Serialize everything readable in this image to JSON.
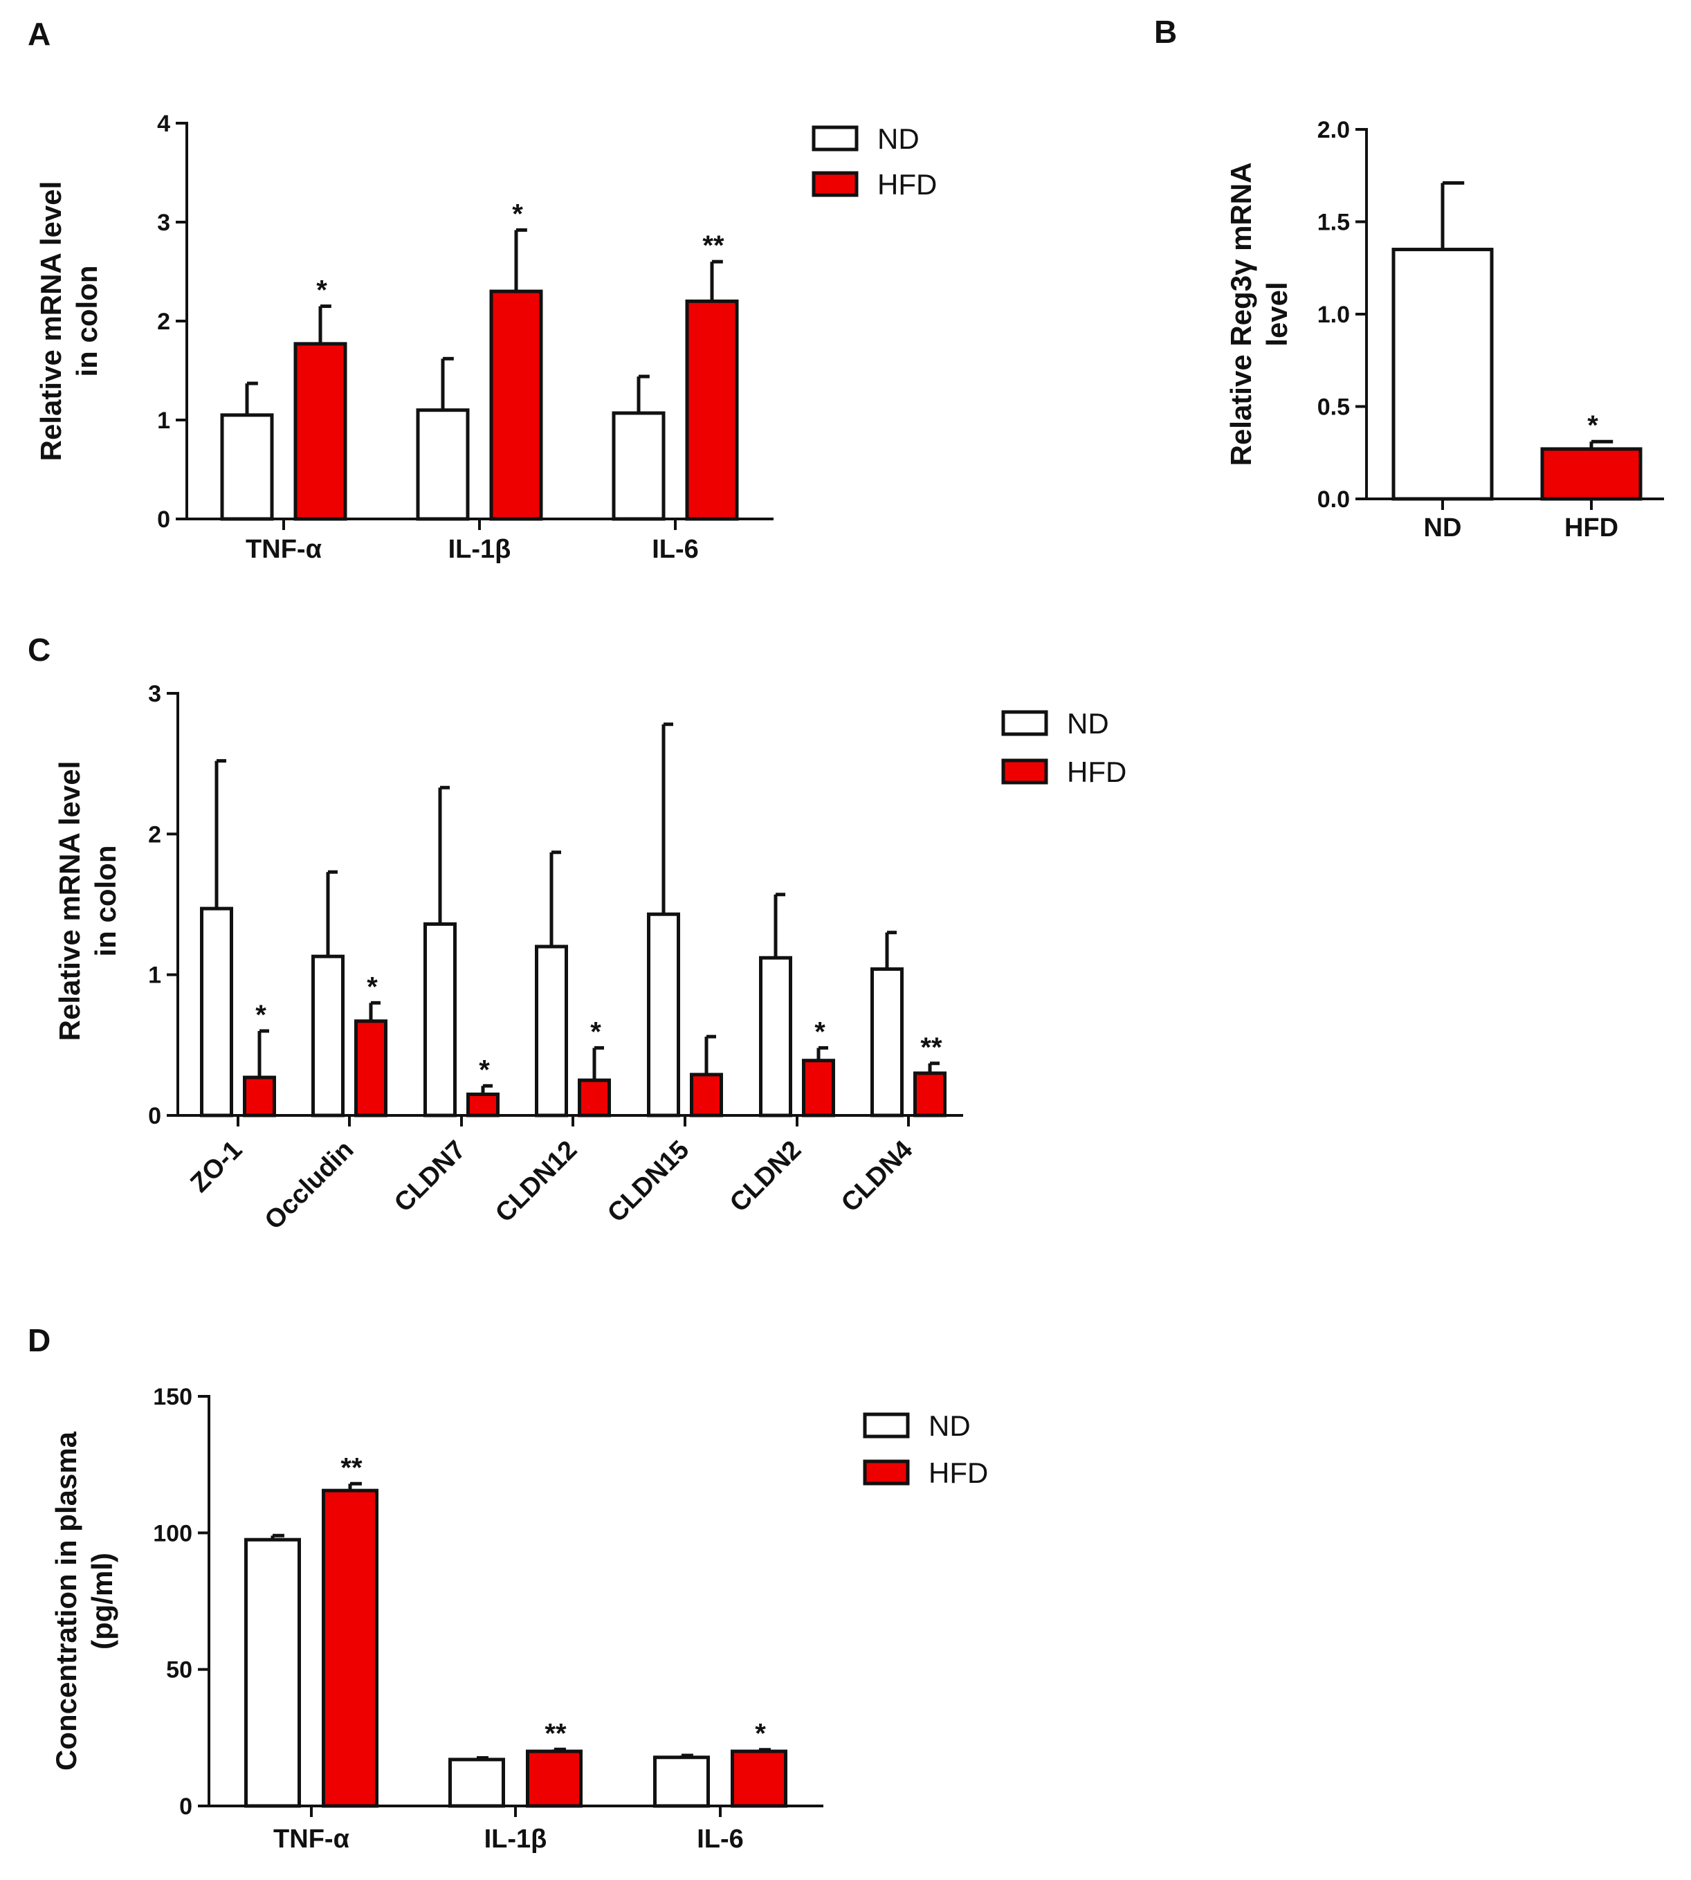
{
  "colors": {
    "nd": "#ffffff",
    "hfd": "#ee0000",
    "stroke": "#111111"
  },
  "legend": {
    "nd": "ND",
    "hfd": "HFD"
  },
  "chart_data": [
    {
      "id": "A",
      "panel_label": "A",
      "type": "bar",
      "ylabel": [
        "Relative mRNA level",
        "in colon"
      ],
      "ylim": [
        0,
        4
      ],
      "yticks": [
        0,
        1,
        2,
        3,
        4
      ],
      "ytick_labels": [
        "0",
        "1",
        "2",
        "3",
        "4"
      ],
      "categories": [
        "TNF-α",
        "IL-1β",
        "IL-6"
      ],
      "series": [
        {
          "name": "ND",
          "values": [
            1.05,
            1.1,
            1.07
          ],
          "errors": [
            0.32,
            0.52,
            0.37
          ]
        },
        {
          "name": "HFD",
          "values": [
            1.77,
            2.3,
            2.2
          ],
          "errors": [
            0.38,
            0.62,
            0.4
          ]
        }
      ],
      "significance": [
        {
          "category": "TNF-α",
          "series": "HFD",
          "label": "*"
        },
        {
          "category": "IL-1β",
          "series": "HFD",
          "label": "*"
        },
        {
          "category": "IL-6",
          "series": "HFD",
          "label": "**"
        }
      ],
      "legend": "right"
    },
    {
      "id": "B",
      "panel_label": "B",
      "type": "bar",
      "ylabel": [
        "Relative Reg3γ mRNA",
        "level"
      ],
      "ylim": [
        0,
        2
      ],
      "yticks": [
        0,
        0.5,
        1,
        1.5,
        2
      ],
      "ytick_labels": [
        "0.0",
        "0.5",
        "1.0",
        "1.5",
        "2.0"
      ],
      "categories": [
        "ND",
        "HFD"
      ],
      "series": [
        {
          "name": "Reg3γ",
          "values": [
            1.35,
            0.27
          ],
          "errors": [
            0.36,
            0.04
          ],
          "group_colors": [
            "nd",
            "hfd"
          ]
        }
      ],
      "significance": [
        {
          "category": "HFD",
          "series": "Reg3γ",
          "label": "*"
        }
      ]
    },
    {
      "id": "C",
      "panel_label": "C",
      "type": "bar",
      "ylabel": [
        "Relative mRNA level",
        "in colon"
      ],
      "ylim": [
        0,
        3
      ],
      "yticks": [
        0,
        1,
        2,
        3
      ],
      "ytick_labels": [
        "0",
        "1",
        "2",
        "3"
      ],
      "categories": [
        "ZO-1",
        "Occludin",
        "CLDN7",
        "CLDN12",
        "CLDN15",
        "CLDN2",
        "CLDN4"
      ],
      "series": [
        {
          "name": "ND",
          "values": [
            1.47,
            1.13,
            1.36,
            1.2,
            1.43,
            1.12,
            1.04
          ],
          "errors": [
            1.05,
            0.6,
            0.97,
            0.67,
            1.35,
            0.45,
            0.26
          ]
        },
        {
          "name": "HFD",
          "values": [
            0.27,
            0.67,
            0.15,
            0.25,
            0.29,
            0.39,
            0.3
          ],
          "errors": [
            0.33,
            0.13,
            0.06,
            0.23,
            0.27,
            0.09,
            0.07
          ]
        }
      ],
      "significance": [
        {
          "category": "ZO-1",
          "series": "HFD",
          "label": "*"
        },
        {
          "category": "Occludin",
          "series": "HFD",
          "label": "*"
        },
        {
          "category": "CLDN7",
          "series": "HFD",
          "label": "*"
        },
        {
          "category": "CLDN12",
          "series": "HFD",
          "label": "*"
        },
        {
          "category": "CLDN2",
          "series": "HFD",
          "label": "*"
        },
        {
          "category": "CLDN4",
          "series": "HFD",
          "label": "**"
        }
      ],
      "legend": "right"
    },
    {
      "id": "D",
      "panel_label": "D",
      "type": "bar",
      "ylabel": [
        "Concentration in plasma",
        "(pg/ml)"
      ],
      "ylim": [
        0,
        150
      ],
      "yticks": [
        0,
        50,
        100,
        150
      ],
      "ytick_labels": [
        "0",
        "50",
        "100",
        "150"
      ],
      "categories": [
        "TNF-α",
        "IL-1β",
        "IL-6"
      ],
      "series": [
        {
          "name": "ND",
          "values": [
            97.5,
            17.0,
            17.8
          ],
          "errors": [
            1.5,
            0.6,
            0.7
          ]
        },
        {
          "name": "HFD",
          "values": [
            115.5,
            20.0,
            20.0
          ],
          "errors": [
            2.5,
            0.7,
            0.6
          ]
        }
      ],
      "significance": [
        {
          "category": "TNF-α",
          "series": "HFD",
          "label": "**"
        },
        {
          "category": "IL-1β",
          "series": "HFD",
          "label": "**"
        },
        {
          "category": "IL-6",
          "series": "HFD",
          "label": "*"
        }
      ],
      "legend": "right"
    }
  ]
}
